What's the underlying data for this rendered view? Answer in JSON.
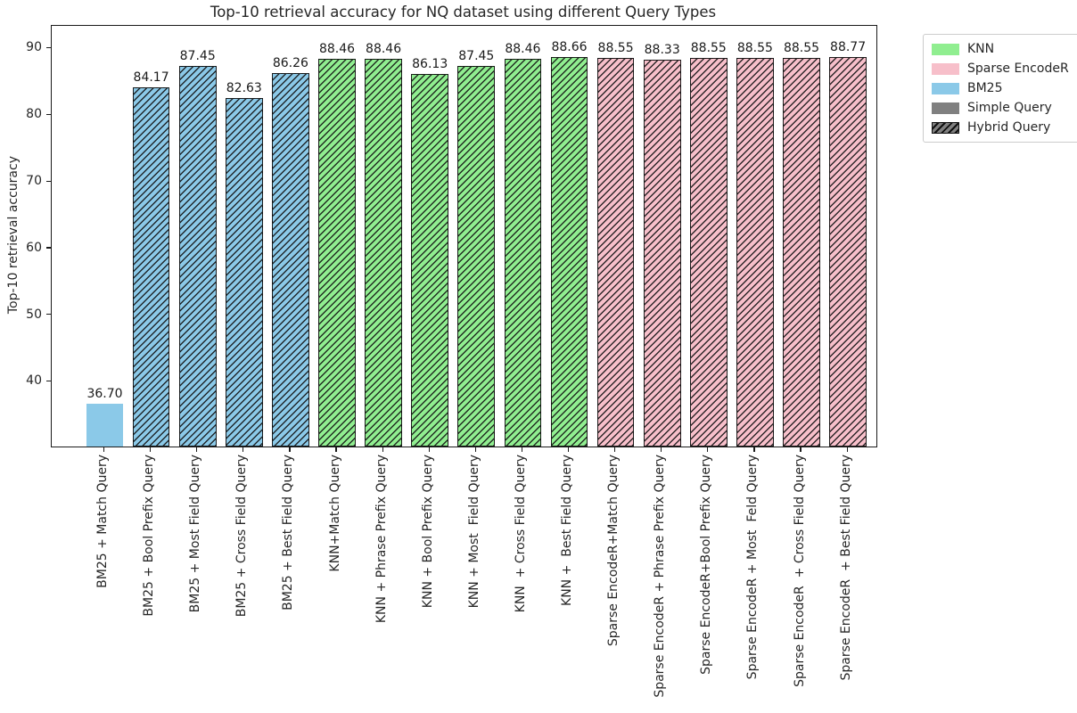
{
  "chart_data": {
    "type": "bar",
    "title": "Top-10 retrieval accuracy for NQ dataset using different Query Types",
    "ylabel": "Top-10 retrieval accuracy",
    "xlabel": "",
    "ylim": [
      30.3,
      93.4
    ],
    "yticks": [
      40,
      50,
      60,
      70,
      80,
      90
    ],
    "grid": false,
    "legend_position": "outside-upper-right",
    "categories": [
      "BM25 + Match Query",
      "BM25 + Bool Prefix Query",
      "BM25 + Most Field Query",
      "BM25 + Cross Field Query",
      "BM25 + Best Field Query",
      "KNN+Match Query",
      "KNN + Phrase Prefix Query",
      "KNN + Bool Prefix Query",
      "KNN + Most  Field Query",
      "KNN  + Cross Field Query",
      "KNN +  Best Field Query",
      "Sparse EncodeR+Match Query",
      "Sparse EncodeR + Phrase Prefix Query",
      "Sparse EncodeR+Bool Prefix Query",
      "Sparse EncodeR + Most  Feld Query",
      "Sparse EncodeR  + Cross Field Query",
      "Sparse EncodeR  + Best Field Query"
    ],
    "values": [
      36.7,
      84.17,
      87.45,
      82.63,
      86.26,
      88.46,
      88.46,
      86.13,
      87.45,
      88.46,
      88.66,
      88.55,
      88.33,
      88.55,
      88.55,
      88.55,
      88.77
    ],
    "value_labels": [
      "36.70",
      "84.17",
      "87.45",
      "82.63",
      "86.26",
      "88.46",
      "88.46",
      "86.13",
      "87.45",
      "88.46",
      "88.66",
      "88.55",
      "88.33",
      "88.55",
      "88.55",
      "88.55",
      "88.77"
    ],
    "bar_groups": [
      "BM25",
      "BM25",
      "BM25",
      "BM25",
      "BM25",
      "KNN",
      "KNN",
      "KNN",
      "KNN",
      "KNN",
      "KNN",
      "Sparse EncodeR",
      "Sparse EncodeR",
      "Sparse EncodeR",
      "Sparse EncodeR",
      "Sparse EncodeR",
      "Sparse EncodeR"
    ],
    "hatched": [
      false,
      true,
      true,
      true,
      true,
      true,
      true,
      true,
      true,
      true,
      true,
      true,
      true,
      true,
      true,
      true,
      true
    ],
    "group_colors": {
      "KNN": "#90EE90",
      "Sparse EncodeR": "#F7BFCA",
      "BM25": "#8BC9E8"
    },
    "query_style_color": "#808080",
    "hatch_line_color": "#121212",
    "legend": [
      {
        "label": "KNN",
        "color": "#90EE90",
        "hatched": false
      },
      {
        "label": "Sparse EncodeR",
        "color": "#F7BFCA",
        "hatched": false
      },
      {
        "label": "BM25",
        "color": "#8BC9E8",
        "hatched": false
      },
      {
        "label": "Simple Query",
        "color": "#808080",
        "hatched": false
      },
      {
        "label": "Hybrid Query",
        "color": "#808080",
        "hatched": true
      }
    ]
  }
}
